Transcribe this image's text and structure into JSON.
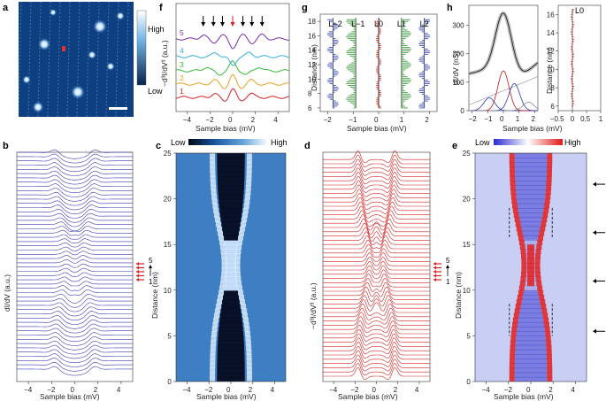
{
  "panels": {
    "a": "a",
    "b": "b",
    "c": "c",
    "d": "d",
    "e": "e",
    "f": "f",
    "g": "g",
    "h": "h"
  },
  "panel_a": {
    "colorbar_high": "High",
    "colorbar_low": "Low"
  },
  "panel_b": {
    "ylabel": "dI/dV (a.u.)",
    "xlabel": "Sample bias (mV)",
    "xticks": [
      "−4",
      "−2",
      "0",
      "2",
      "4"
    ],
    "marker_top": "5",
    "marker_bottom": "1",
    "trace_count": 52,
    "color": "#3a3ab8"
  },
  "panel_c": {
    "cb_low": "Low",
    "cb_high": "High",
    "ylabel": "Distance (nm)",
    "xlabel": "Sample bias (mV)",
    "xticks": [
      "−4",
      "−2",
      "0",
      "2",
      "4"
    ],
    "yticks": [
      "0",
      "5",
      "10",
      "15",
      "20",
      "25"
    ]
  },
  "panel_d": {
    "ylabel": "−d³I/dV³ (a.u.)",
    "xlabel": "Sample bias (mV)",
    "xticks": [
      "−4",
      "−2",
      "0",
      "2",
      "4"
    ],
    "marker_top": "5",
    "marker_bottom": "1",
    "trace_count": 52,
    "color": "#d42020"
  },
  "panel_e": {
    "cb_low": "Low",
    "cb_high": "High",
    "ylabel": "Distance (nm)",
    "xlabel": "Sample bias (mV)",
    "xticks": [
      "−4",
      "−2",
      "0",
      "2",
      "4"
    ],
    "yticks": [
      "0",
      "5",
      "10",
      "15",
      "20",
      "25"
    ]
  },
  "panel_f": {
    "ylabel": "−d³I/dV³ (a.u.)",
    "xlabel": "Sample bias (mV)",
    "xticks": [
      "−4",
      "−2",
      "0",
      "2",
      "4"
    ],
    "labels": [
      "1",
      "2",
      "3",
      "4",
      "5"
    ],
    "colors": [
      "#d42020",
      "#e8a020",
      "#38b838",
      "#30b0d8",
      "#7a2aa8"
    ]
  },
  "panel_g": {
    "ylabel": "Distance (nm)",
    "xlabel": "Sample bias (mV)",
    "xticks": [
      "−2",
      "−1",
      "0",
      "1",
      "2"
    ],
    "yticks": [
      "6",
      "8",
      "10",
      "12",
      "14",
      "16",
      "18"
    ],
    "series_labels": [
      "L−2",
      "L−1",
      "L0",
      "L1",
      "L2"
    ]
  },
  "panel_h": {
    "ylabel": "dI/dV (nS)",
    "xlabel": "Sample bias (mV)",
    "xticks": [
      "−2",
      "−1",
      "0",
      "1",
      "2"
    ],
    "yticks": [
      "0",
      "100",
      "200",
      "300"
    ],
    "ylabel2": "Distance (nm)",
    "xticks2": [
      "−0.5",
      "0",
      "0.5",
      "1"
    ],
    "yticks2": [
      "6",
      "8",
      "10",
      "12",
      "14",
      "16"
    ],
    "label2": "L0"
  },
  "chart_data": [
    {
      "panel": "f",
      "type": "line",
      "title": "",
      "xlabel": "Sample bias (mV)",
      "ylabel": "−d³I/dV³ (a.u.)",
      "xlim": [
        -5,
        5
      ],
      "series": [
        {
          "name": "1",
          "peaks": [
            -1.6,
            -0.7,
            0,
            0.7,
            1.6
          ]
        },
        {
          "name": "2",
          "peaks": [
            -1.6,
            -0.7,
            0,
            0.7,
            1.6
          ]
        },
        {
          "name": "3",
          "peaks": [
            -2.3,
            -1.2,
            0,
            1.2,
            2.3
          ]
        },
        {
          "name": "4",
          "peaks": [
            -1.5,
            0,
            1.5
          ]
        },
        {
          "name": "5",
          "peaks": [
            -2.6,
            -1.7,
            -0.9,
            0,
            0.9,
            1.7,
            2.6
          ]
        }
      ],
      "annotations": [
        {
          "text": "arrows",
          "x": [
            -2.6,
            -1.7,
            -0.9,
            0,
            0.9,
            1.7,
            2.6
          ]
        }
      ]
    },
    {
      "panel": "g",
      "type": "scatter",
      "xlabel": "Sample bias (mV)",
      "ylabel": "Distance (nm)",
      "xlim": [
        -2.3,
        2.3
      ],
      "ylim": [
        5.5,
        19
      ],
      "series": [
        {
          "name": "L−2",
          "x0": -1.8
        },
        {
          "name": "L−1",
          "x0": -0.9
        },
        {
          "name": "L0",
          "x0": 0
        },
        {
          "name": "L1",
          "x0": 0.9
        },
        {
          "name": "L2",
          "x0": 1.8
        }
      ]
    },
    {
      "panel": "h",
      "type": "line",
      "xlabel": "Sample bias (mV)",
      "ylabel": "dI/dV (nS)",
      "xlim": [
        -2.2,
        2.2
      ],
      "ylim": [
        0,
        370
      ],
      "series": [
        {
          "name": "fit",
          "peak_x": 0,
          "peak_y": 335
        },
        {
          "name": "L−1",
          "center": -0.9,
          "height": 45
        },
        {
          "name": "L0",
          "center": 0,
          "height": 140
        },
        {
          "name": "L1",
          "center": 0.7,
          "height": 95
        },
        {
          "name": "L2",
          "center": 1.6,
          "height": 30
        }
      ]
    },
    {
      "panel": "b",
      "type": "line",
      "xlabel": "Sample bias (mV)",
      "ylabel": "dI/dV (a.u.)",
      "xlim": [
        -5,
        5
      ],
      "series_count": 52
    },
    {
      "panel": "d",
      "type": "line",
      "xlabel": "Sample bias (mV)",
      "ylabel": "−d³I/dV³ (a.u.)",
      "xlim": [
        -5,
        5
      ],
      "series_count": 52
    },
    {
      "panel": "c",
      "type": "heatmap",
      "xlabel": "Sample bias (mV)",
      "ylabel": "Distance (nm)",
      "xlim": [
        -5,
        5
      ],
      "ylim": [
        0,
        25
      ]
    },
    {
      "panel": "e",
      "type": "heatmap",
      "xlabel": "Sample bias (mV)",
      "ylabel": "Distance (nm)",
      "xlim": [
        -5,
        5
      ],
      "ylim": [
        0,
        25
      ],
      "arrows_at": [
        5.5,
        11,
        16.3,
        21.6
      ]
    }
  ]
}
